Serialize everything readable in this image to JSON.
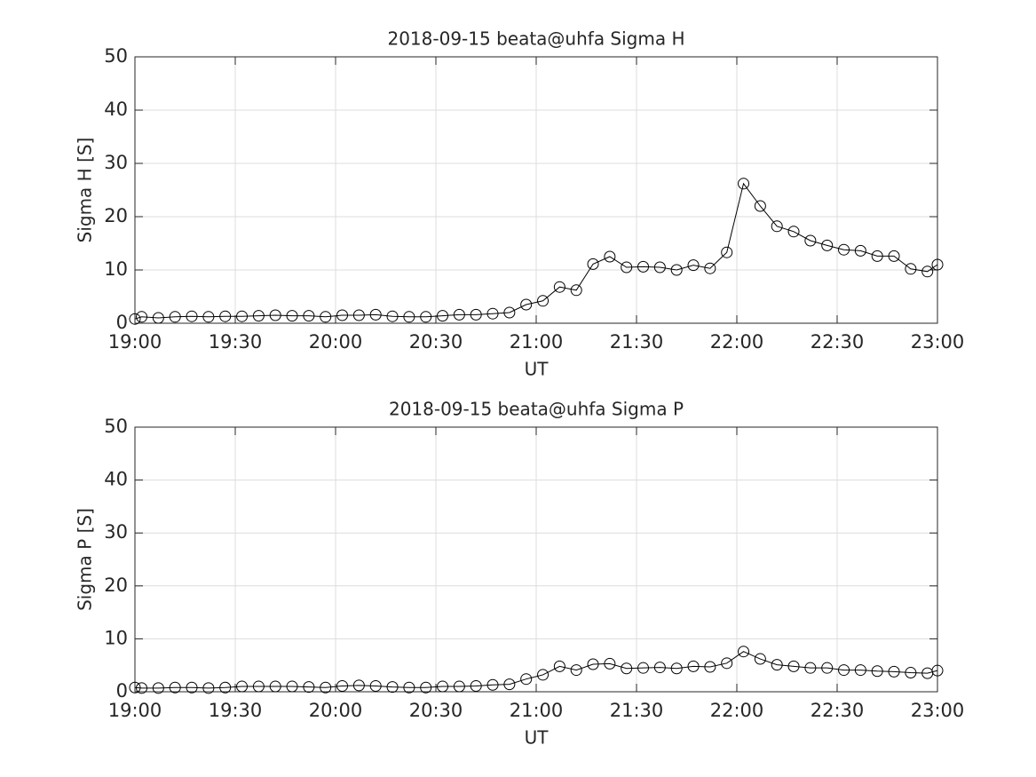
{
  "chart_data": [
    {
      "type": "line",
      "title": "2018-09-15  beata@uhfa Sigma H",
      "x_label": "UT",
      "y_label": "Sigma H [S]",
      "x": [
        "19:00",
        "19:02",
        "19:07",
        "19:12",
        "19:17",
        "19:22",
        "19:27",
        "19:32",
        "19:37",
        "19:42",
        "19:47",
        "19:52",
        "19:57",
        "20:02",
        "20:07",
        "20:12",
        "20:17",
        "20:22",
        "20:27",
        "20:32",
        "20:37",
        "20:42",
        "20:47",
        "20:52",
        "20:57",
        "21:02",
        "21:07",
        "21:12",
        "21:17",
        "21:22",
        "21:27",
        "21:32",
        "21:37",
        "21:42",
        "21:47",
        "21:52",
        "21:57",
        "22:02",
        "22:07",
        "22:12",
        "22:17",
        "22:22",
        "22:27",
        "22:32",
        "22:37",
        "22:42",
        "22:47",
        "22:52",
        "22:57",
        "23:00"
      ],
      "series": [
        {
          "color": "#000000",
          "marker": "circle",
          "values": [
            0.8,
            1.2,
            1.0,
            1.2,
            1.3,
            1.2,
            1.3,
            1.3,
            1.4,
            1.5,
            1.4,
            1.4,
            1.2,
            1.5,
            1.5,
            1.6,
            1.3,
            1.2,
            1.2,
            1.4,
            1.6,
            1.6,
            1.8,
            2.0,
            3.5,
            4.2,
            6.8,
            6.2,
            11.1,
            12.5,
            10.5,
            10.6,
            10.5,
            10.0,
            10.9,
            10.3,
            13.3,
            26.2,
            22.0,
            18.2,
            17.2,
            15.5,
            14.6,
            13.8,
            13.6,
            12.6,
            12.6,
            10.2,
            9.7,
            11.0
          ]
        }
      ],
      "xlim": [
        "19:00",
        "23:00"
      ],
      "xticks": [
        "19:00",
        "19:30",
        "20:00",
        "20:30",
        "21:00",
        "21:30",
        "22:00",
        "22:30",
        "23:00"
      ],
      "ylim": [
        0,
        50
      ],
      "yticks": [
        0,
        10,
        20,
        30,
        40,
        50
      ],
      "grid": true
    },
    {
      "type": "line",
      "title": "2018-09-15  beata@uhfa Sigma P",
      "x_label": "UT",
      "y_label": "Sigma P [S]",
      "x": [
        "19:00",
        "19:02",
        "19:07",
        "19:12",
        "19:17",
        "19:22",
        "19:27",
        "19:32",
        "19:37",
        "19:42",
        "19:47",
        "19:52",
        "19:57",
        "20:02",
        "20:07",
        "20:12",
        "20:17",
        "20:22",
        "20:27",
        "20:32",
        "20:37",
        "20:42",
        "20:47",
        "20:52",
        "20:57",
        "21:02",
        "21:07",
        "21:12",
        "21:17",
        "21:22",
        "21:27",
        "21:32",
        "21:37",
        "21:42",
        "21:47",
        "21:52",
        "21:57",
        "22:02",
        "22:07",
        "22:12",
        "22:17",
        "22:22",
        "22:27",
        "22:32",
        "22:37",
        "22:42",
        "22:47",
        "22:52",
        "22:57",
        "23:00"
      ],
      "series": [
        {
          "color": "#000000",
          "marker": "circle",
          "values": [
            0.8,
            0.7,
            0.7,
            0.8,
            0.8,
            0.7,
            0.8,
            1.0,
            1.0,
            1.0,
            1.0,
            0.9,
            0.8,
            1.1,
            1.2,
            1.1,
            0.9,
            0.8,
            0.8,
            1.0,
            1.0,
            1.1,
            1.3,
            1.4,
            2.4,
            3.2,
            4.8,
            4.1,
            5.2,
            5.3,
            4.4,
            4.5,
            4.6,
            4.4,
            4.8,
            4.7,
            5.4,
            7.6,
            6.2,
            5.1,
            4.8,
            4.5,
            4.5,
            4.1,
            4.1,
            3.9,
            3.8,
            3.6,
            3.5,
            4.0
          ]
        }
      ],
      "xlim": [
        "19:00",
        "23:00"
      ],
      "xticks": [
        "19:00",
        "19:30",
        "20:00",
        "20:30",
        "21:00",
        "21:30",
        "22:00",
        "22:30",
        "23:00"
      ],
      "ylim": [
        0,
        50
      ],
      "yticks": [
        0,
        10,
        20,
        30,
        40,
        50
      ],
      "grid": true
    }
  ]
}
